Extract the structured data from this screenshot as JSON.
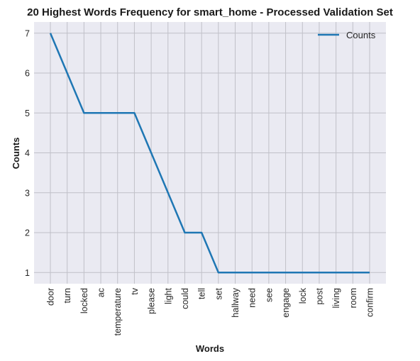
{
  "chart_data": {
    "type": "line",
    "title": "20 Highest Words Frequency for smart_home - Processed Validation Set",
    "xlabel": "Words",
    "ylabel": "Counts",
    "categories": [
      "door",
      "turn",
      "locked",
      "ac",
      "temperature",
      "tv",
      "please",
      "light",
      "could",
      "tell",
      "set",
      "hallway",
      "need",
      "see",
      "engage",
      "lock",
      "post",
      "living",
      "room",
      "confirm"
    ],
    "series": [
      {
        "name": "Counts",
        "values": [
          7,
          6,
          5,
          5,
          5,
          5,
          4,
          3,
          2,
          2,
          1,
          1,
          1,
          1,
          1,
          1,
          1,
          1,
          1,
          1
        ]
      }
    ],
    "yticks": [
      1,
      2,
      3,
      4,
      5,
      6,
      7
    ],
    "ylim": [
      0.72,
      7.28
    ],
    "grid": true,
    "legend": "top-right",
    "colors": {
      "line": "#1f77b4",
      "plot_bg": "#eaeaf2",
      "grid": "#c0c0c8"
    }
  }
}
